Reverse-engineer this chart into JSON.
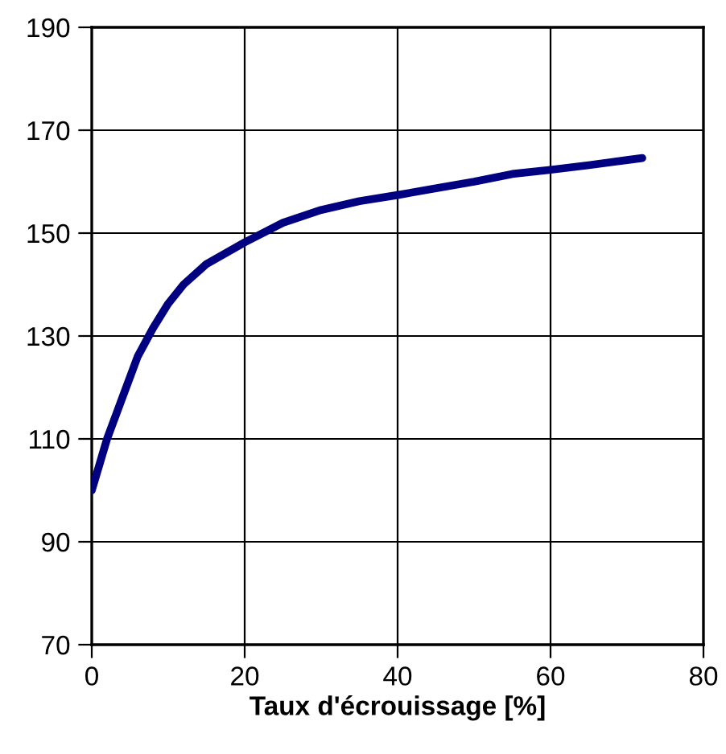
{
  "chart_data": {
    "type": "line",
    "xlabel": "Taux d'écrouissage [%]",
    "series": [
      {
        "color": "#000080",
        "x": [
          0,
          2,
          4,
          5,
          6,
          8,
          10,
          12,
          15,
          20,
          25,
          30,
          35,
          40,
          45,
          50,
          55,
          60,
          65,
          70,
          72
        ],
        "values": [
          100,
          110,
          118,
          122,
          126,
          131.5,
          136.3,
          140,
          144,
          148.2,
          152,
          154.5,
          156.2,
          157.4,
          158.7,
          160,
          161.5,
          162.3,
          163.2,
          164.2,
          164.6
        ]
      }
    ],
    "xlim": [
      0,
      80
    ],
    "xticks": [
      0,
      20,
      40,
      60,
      80
    ],
    "ylim": [
      70,
      190
    ],
    "yticks": [
      70,
      90,
      110,
      130,
      150,
      170,
      190
    ],
    "grid": true,
    "marker": "none",
    "line_style": "solid"
  }
}
